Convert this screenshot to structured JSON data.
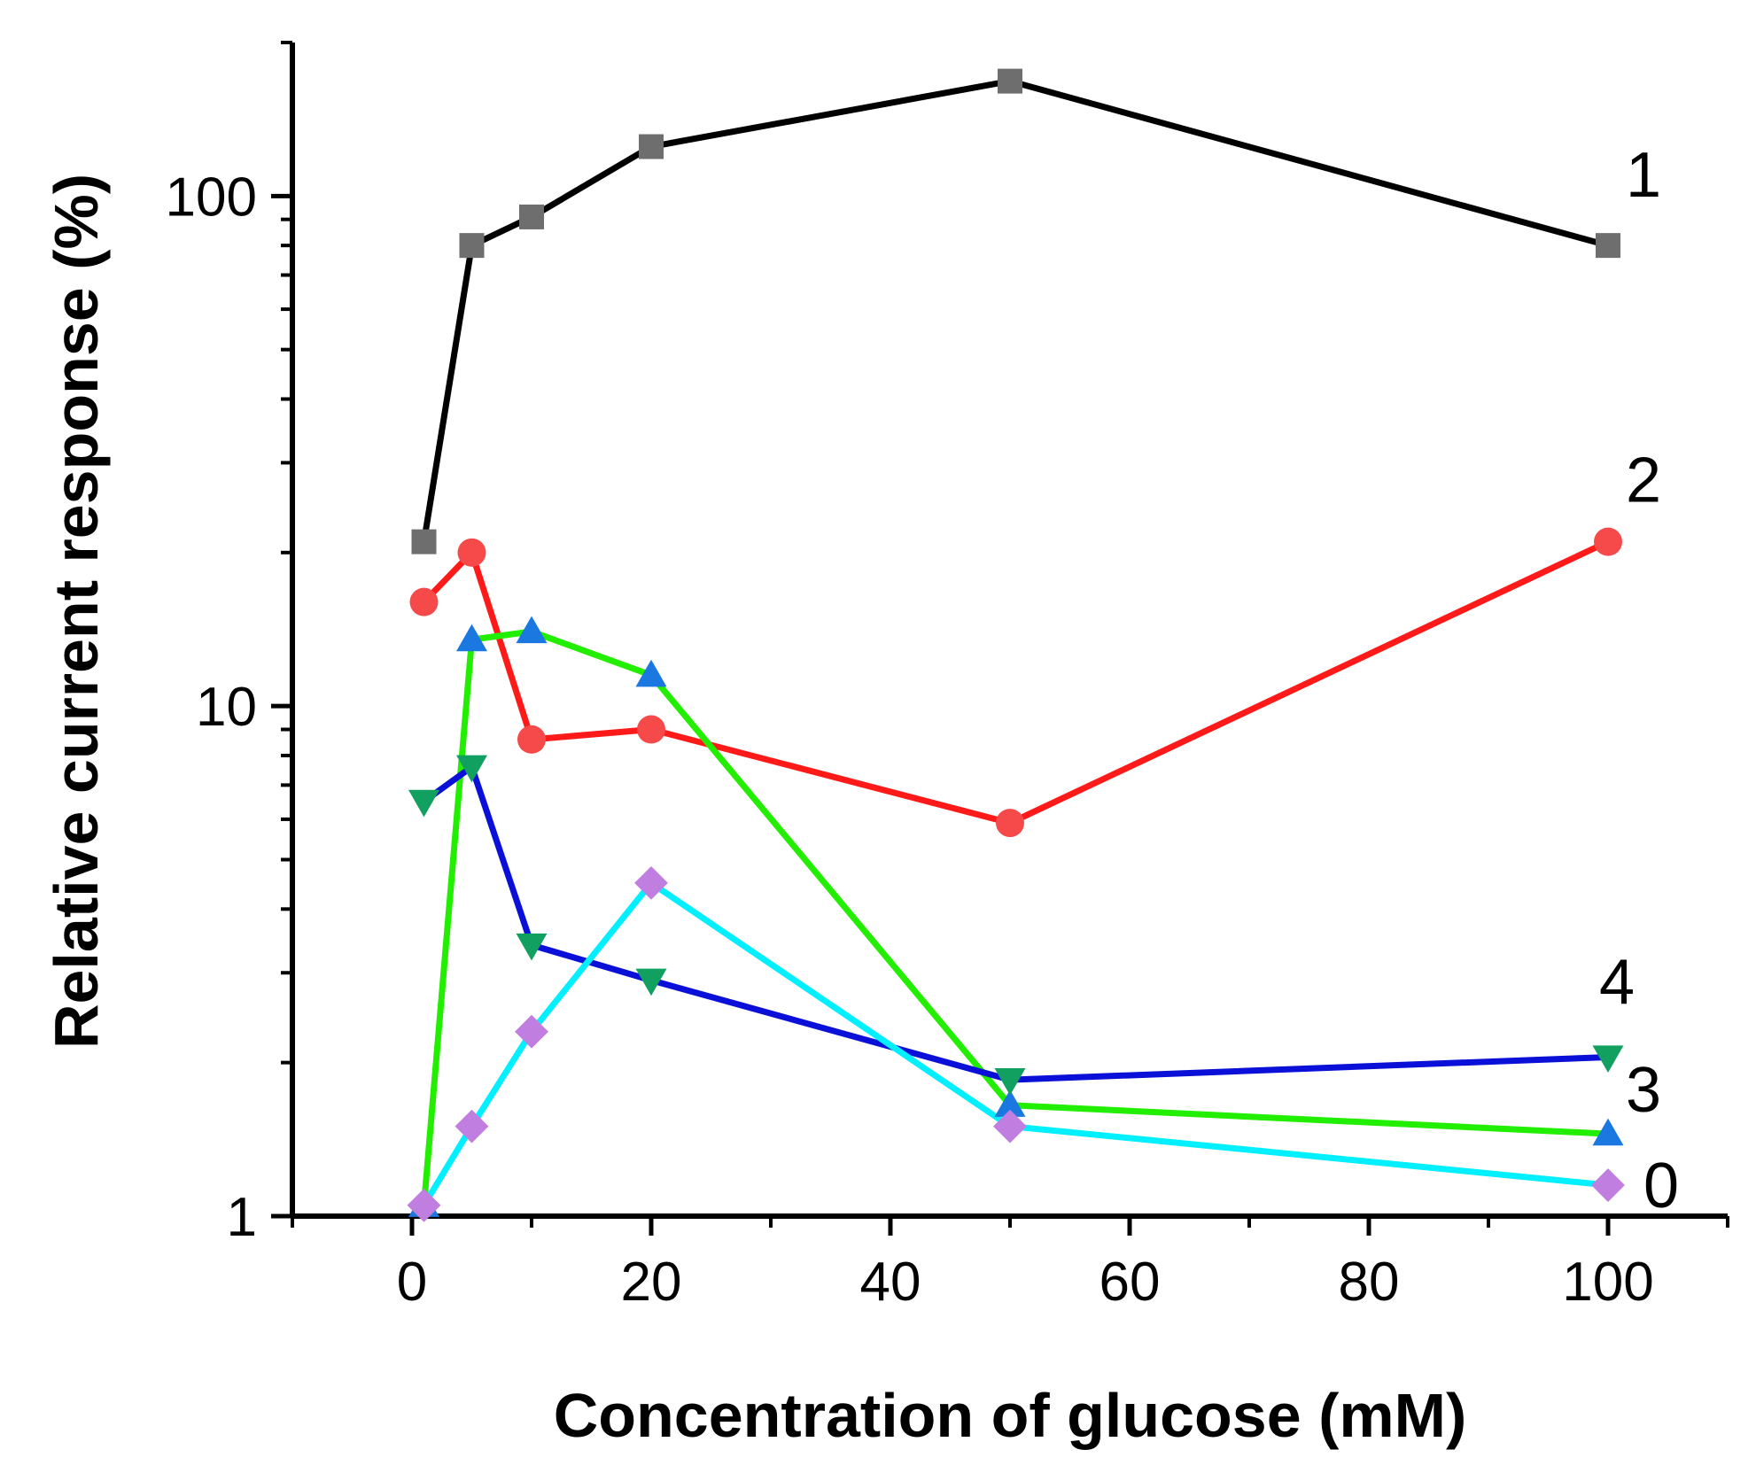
{
  "chart_data": {
    "type": "line",
    "title": "",
    "xlabel": "Concentration of glucose (mM)",
    "ylabel": "Relative current response (%)",
    "xlim": [
      -10,
      110
    ],
    "ylim": [
      1,
      200
    ],
    "yscale": "log",
    "xticks": [
      0,
      20,
      40,
      60,
      80,
      100
    ],
    "xtick_labels": [
      "0",
      "20",
      "40",
      "60",
      "80",
      "100"
    ],
    "yticks": [
      1,
      10,
      100
    ],
    "ytick_labels": [
      "1",
      "10",
      "100"
    ],
    "x": [
      1,
      5,
      10,
      20,
      50,
      100
    ],
    "series": [
      {
        "name": "1",
        "label": "1",
        "line_color": "#000000",
        "marker": "square",
        "marker_color": "#6e6e6e",
        "values": [
          21,
          80,
          91,
          125,
          168,
          80
        ]
      },
      {
        "name": "2",
        "label": "2",
        "line_color": "#ff1a1a",
        "marker": "circle",
        "marker_color": "#f64a4a",
        "values": [
          16,
          20,
          8.6,
          9.0,
          5.9,
          21
        ]
      },
      {
        "name": "3",
        "label": "3",
        "line_color": "#22ee00",
        "marker": "triangle-up",
        "marker_color": "#1a78e0",
        "values": [
          1.05,
          13.5,
          14,
          11.5,
          1.65,
          1.45
        ]
      },
      {
        "name": "4",
        "label": "4",
        "line_color": "#0a10d8",
        "marker": "triangle-down",
        "marker_color": "#12a060",
        "values": [
          6.5,
          7.6,
          3.4,
          2.9,
          1.85,
          2.05
        ]
      },
      {
        "name": "0",
        "label": "0",
        "line_color": "#00f0ff",
        "marker": "diamond",
        "marker_color": "#c07ee0",
        "values": [
          1.05,
          1.5,
          2.3,
          4.5,
          1.5,
          1.15
        ]
      }
    ]
  }
}
